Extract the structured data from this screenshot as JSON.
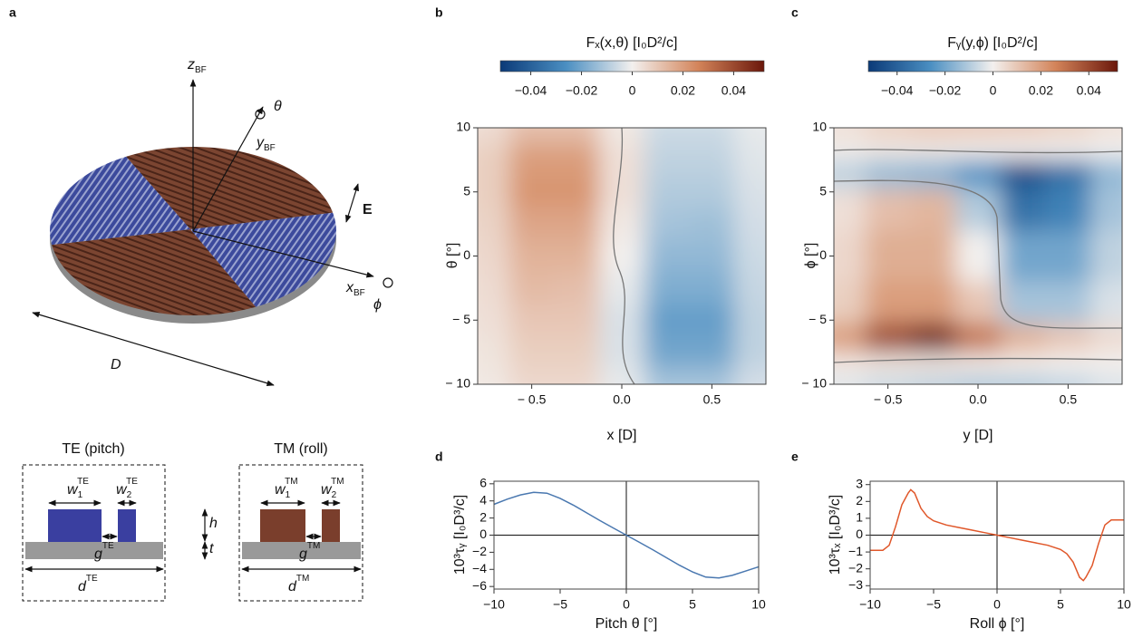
{
  "panels": [
    "a",
    "b",
    "c",
    "d",
    "e"
  ],
  "diagram": {
    "axes": [
      {
        "text": "z",
        "sub": "BF"
      },
      {
        "text": "y",
        "sub": "BF"
      },
      {
        "text": "x",
        "sub": "BF"
      }
    ],
    "rotations": [
      "θ",
      "ϕ"
    ],
    "field": "E",
    "diameter": "D",
    "te": {
      "title": "TE (pitch)",
      "w1": {
        "text": "w",
        "sub": "1",
        "sup": "TE"
      },
      "w2": {
        "text": "w",
        "sub": "2",
        "sup": "TE"
      },
      "g": {
        "text": "g",
        "sup": "TE"
      },
      "d": {
        "text": "d",
        "sup": "TE"
      }
    },
    "tm": {
      "title": "TM (roll)",
      "w1": {
        "text": "w",
        "sub": "1",
        "sup": "TM"
      },
      "w2": {
        "text": "w",
        "sub": "2",
        "sup": "TM"
      },
      "g": {
        "text": "g",
        "sup": "TM"
      },
      "d": {
        "text": "d",
        "sup": "TM"
      }
    },
    "h": "h",
    "t": "t"
  },
  "chart_data": [
    {
      "type": "heatmap",
      "title": "Fₓ(x,θ) [I₀D²/c]",
      "xlabel": "x [D]",
      "ylabel": "θ [°]",
      "x": [
        -0.75,
        -0.5,
        -0.25,
        0,
        0.25,
        0.5,
        0.75
      ],
      "y": [
        10,
        7.5,
        5,
        2.5,
        0,
        -2.5,
        -5,
        -7.5,
        -10
      ],
      "z": [
        [
          0.005,
          0.012,
          0.012,
          0.002,
          -0.006,
          -0.006,
          -0.002
        ],
        [
          0.008,
          0.02,
          0.02,
          0.004,
          -0.008,
          -0.008,
          -0.003
        ],
        [
          0.008,
          0.022,
          0.022,
          0.004,
          -0.01,
          -0.01,
          -0.004
        ],
        [
          0.007,
          0.018,
          0.018,
          0.002,
          -0.012,
          -0.013,
          -0.005
        ],
        [
          0.006,
          0.015,
          0.015,
          0,
          -0.015,
          -0.015,
          -0.006
        ],
        [
          0.005,
          0.013,
          0.012,
          -0.002,
          -0.018,
          -0.018,
          -0.007
        ],
        [
          0.004,
          0.01,
          0.01,
          -0.004,
          -0.022,
          -0.022,
          -0.008
        ],
        [
          0.003,
          0.008,
          0.008,
          -0.004,
          -0.02,
          -0.02,
          -0.008
        ],
        [
          0.002,
          0.006,
          0.006,
          -0.002,
          -0.012,
          -0.012,
          -0.005
        ]
      ],
      "xlim": [
        -0.8,
        0.8
      ],
      "ylim": [
        -10,
        10
      ],
      "xticks": [
        {
          "value": -0.5,
          "label": "− 0.5"
        },
        {
          "value": 0,
          "label": "0.0"
        },
        0.5
      ],
      "yticks": [
        {
          "value": -10,
          "label": "− 10"
        },
        {
          "value": -5,
          "label": "− 5"
        },
        0,
        5,
        10
      ],
      "zlim": [
        -0.052,
        0.052
      ],
      "zticks": [
        {
          "value": -0.04,
          "label": "−0.04"
        },
        {
          "value": -0.02,
          "label": "−0.02"
        },
        0,
        0.02,
        0.04
      ],
      "colormap": [
        "#0b3a78",
        "#4b8fc2",
        "#f3f0ee",
        "#d3845a",
        "#6b170b"
      ]
    },
    {
      "type": "heatmap",
      "title": "Fᵧ(y,ϕ) [I₀D²/c]",
      "xlabel": "y [D]",
      "ylabel": "ϕ [°]",
      "x": [
        -0.75,
        -0.5,
        -0.25,
        0,
        0.25,
        0.5,
        0.75
      ],
      "y": [
        10,
        8.5,
        6.5,
        4,
        0,
        -4,
        -6.5,
        -8.5,
        -10
      ],
      "z": [
        [
          0.004,
          0.008,
          0.01,
          0.01,
          0.01,
          0.008,
          0.004
        ],
        [
          0.001,
          0.002,
          0.002,
          0.001,
          0,
          0,
          0
        ],
        [
          -0.008,
          -0.014,
          -0.016,
          -0.025,
          -0.045,
          -0.035,
          -0.015
        ],
        [
          0.004,
          0.012,
          0.014,
          -0.01,
          -0.035,
          -0.03,
          -0.012
        ],
        [
          0.006,
          0.016,
          0.016,
          0,
          -0.02,
          -0.02,
          -0.008
        ],
        [
          0.008,
          0.02,
          0.02,
          0.01,
          -0.012,
          -0.012,
          -0.004
        ],
        [
          0.02,
          0.04,
          0.05,
          0.03,
          0.015,
          0.01,
          0.005
        ],
        [
          0.002,
          0.003,
          0.003,
          0.002,
          0.001,
          0,
          0
        ],
        [
          -0.003,
          -0.006,
          -0.008,
          -0.01,
          -0.01,
          -0.008,
          -0.004
        ]
      ],
      "xlim": [
        -0.8,
        0.8
      ],
      "ylim": [
        -10,
        10
      ],
      "xticks": [
        {
          "value": -0.5,
          "label": "− 0.5"
        },
        {
          "value": 0,
          "label": "0.0"
        },
        0.5
      ],
      "yticks": [
        {
          "value": -10,
          "label": "− 10"
        },
        {
          "value": -5,
          "label": "− 5"
        },
        0,
        5,
        10
      ],
      "zlim": [
        -0.052,
        0.052
      ],
      "zticks": [
        {
          "value": -0.04,
          "label": "−0.04"
        },
        {
          "value": -0.02,
          "label": "−0.02"
        },
        0,
        0.02,
        0.04
      ],
      "colormap": [
        "#0b3a78",
        "#4b8fc2",
        "#f3f0ee",
        "#d3845a",
        "#6b170b"
      ]
    },
    {
      "type": "line",
      "xlabel": "Pitch θ [°]",
      "ylabel": "10³τᵧ [I₀D³/c]",
      "x": [
        -10,
        -9,
        -8,
        -7,
        -6,
        -5,
        -4,
        -3,
        -2,
        -1,
        0,
        1,
        2,
        3,
        4,
        5,
        6,
        7,
        8,
        9,
        10
      ],
      "series": [
        {
          "color": "#4a78b0",
          "values": [
            3.6,
            4.2,
            4.7,
            5.0,
            4.9,
            4.3,
            3.5,
            2.6,
            1.7,
            0.85,
            0,
            -0.85,
            -1.7,
            -2.6,
            -3.5,
            -4.3,
            -4.9,
            -5.0,
            -4.7,
            -4.2,
            -3.7
          ]
        }
      ],
      "xlim": [
        -10,
        10
      ],
      "ylim": [
        -6.3,
        6.3
      ],
      "xticks": [
        {
          "value": -10,
          "label": "−10"
        },
        {
          "value": -5,
          "label": "−5"
        },
        0,
        5,
        10
      ],
      "yticks": [
        {
          "value": -6,
          "label": "−6"
        },
        {
          "value": -4,
          "label": "−4"
        },
        {
          "value": -2,
          "label": "−2"
        },
        0,
        2,
        4,
        6
      ]
    },
    {
      "type": "line",
      "xlabel": "Roll ϕ [°]",
      "ylabel": "10³τₓ [I₀D³/c]",
      "x": [
        -10,
        -9,
        -8.5,
        -8,
        -7.5,
        -7,
        -6.8,
        -6.5,
        -6,
        -5.5,
        -5,
        -4,
        -3,
        -2,
        -1,
        0,
        1,
        2,
        3,
        4,
        5,
        5.5,
        6,
        6.5,
        6.8,
        7,
        7.5,
        8,
        8.5,
        9,
        10
      ],
      "series": [
        {
          "color": "#e0572a",
          "values": [
            -0.9,
            -0.9,
            -0.6,
            0.5,
            1.8,
            2.5,
            2.7,
            2.5,
            1.6,
            1.1,
            0.85,
            0.6,
            0.45,
            0.3,
            0.15,
            0,
            -0.15,
            -0.3,
            -0.45,
            -0.6,
            -0.85,
            -1.1,
            -1.6,
            -2.5,
            -2.7,
            -2.5,
            -1.8,
            -0.5,
            0.6,
            0.9,
            0.9
          ]
        }
      ],
      "xlim": [
        -10,
        10
      ],
      "ylim": [
        -3.2,
        3.2
      ],
      "xticks": [
        {
          "value": -10,
          "label": "−10"
        },
        {
          "value": -5,
          "label": "−5"
        },
        0,
        5,
        10
      ],
      "yticks": [
        {
          "value": -3,
          "label": "−3"
        },
        {
          "value": -2,
          "label": "−2"
        },
        {
          "value": -1,
          "label": "−1"
        },
        0,
        1,
        2,
        3
      ]
    }
  ]
}
